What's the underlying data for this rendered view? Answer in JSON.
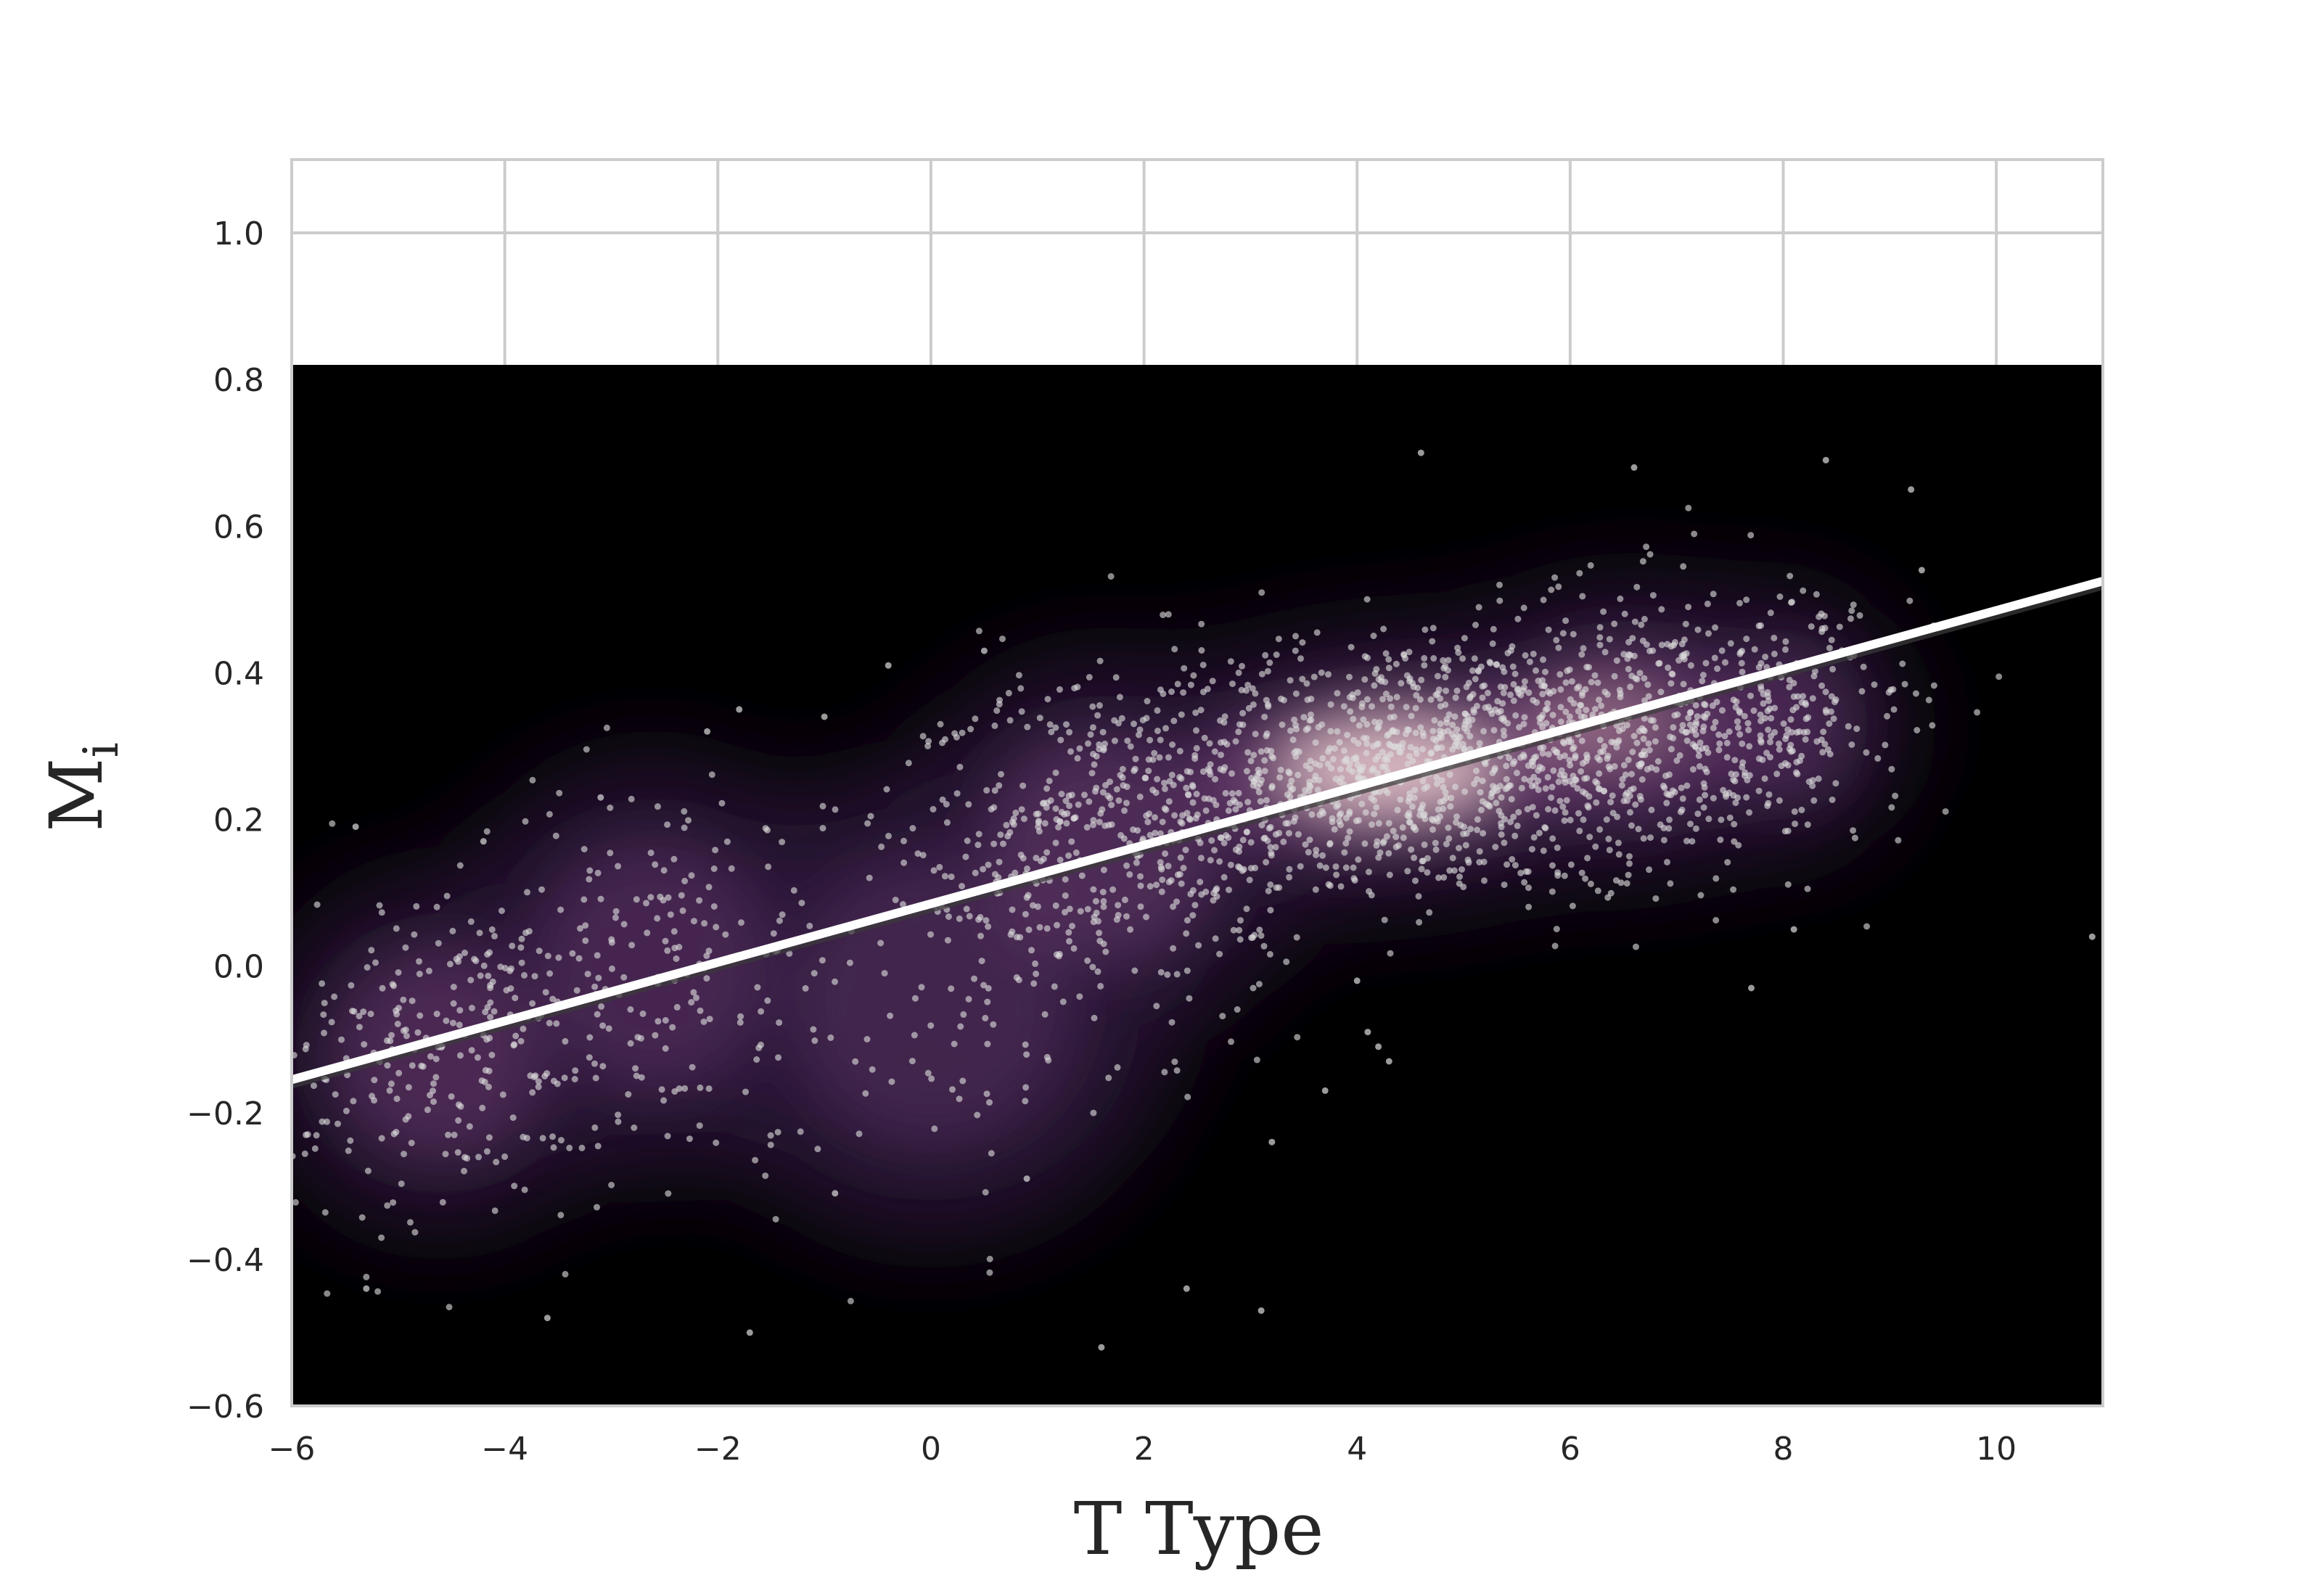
{
  "chart_data": {
    "type": "scatter",
    "title": "",
    "xlabel": "T Type",
    "ylabel_main": "M",
    "ylabel_sub": "i",
    "xlim": [
      -6,
      11
    ],
    "ylim": [
      -0.6,
      1.1
    ],
    "xticks": [
      -6,
      -4,
      -2,
      0,
      2,
      4,
      6,
      8,
      10
    ],
    "xtick_labels": [
      "−6",
      "−4",
      "−2",
      "0",
      "2",
      "4",
      "6",
      "8",
      "10"
    ],
    "yticks": [
      -0.6,
      -0.4,
      -0.2,
      0.0,
      0.2,
      0.4,
      0.6,
      0.8,
      1.0
    ],
    "ytick_labels": [
      "−0.6",
      "−0.4",
      "−0.2",
      "0.0",
      "0.2",
      "0.4",
      "0.6",
      "0.8",
      "1.0"
    ],
    "grid": true,
    "density_overlay": {
      "kind": "kde",
      "ymax": 0.82,
      "background": "#000000",
      "peak_color": "#f2d4d6"
    },
    "fit_line": {
      "x": [
        -6,
        11
      ],
      "y": [
        -0.155,
        0.525
      ],
      "color": "#ffffff"
    },
    "colors": {
      "points": "#dcdcdc",
      "grid": "#cccccc",
      "spine": "#cccccc"
    },
    "clusters": [
      {
        "cx": 4.3,
        "cy": 0.27,
        "sx": 1.7,
        "sy": 0.095,
        "n": 1100,
        "rho": 0.25
      },
      {
        "cx": 6.5,
        "cy": 0.32,
        "sx": 1.1,
        "sy": 0.1,
        "n": 420,
        "rho": 0.1
      },
      {
        "cx": 1.6,
        "cy": 0.16,
        "sx": 1.0,
        "sy": 0.13,
        "n": 320,
        "rho": 0.15
      },
      {
        "cx": -4.6,
        "cy": -0.12,
        "sx": 0.9,
        "sy": 0.12,
        "n": 260,
        "rho": 0.1
      },
      {
        "cx": -2.6,
        "cy": 0.0,
        "sx": 1.0,
        "sy": 0.14,
        "n": 180,
        "rho": 0.1
      },
      {
        "cx": 0.0,
        "cy": -0.05,
        "sx": 1.2,
        "sy": 0.16,
        "n": 80,
        "rho": 0.0
      },
      {
        "cx": 8.0,
        "cy": 0.33,
        "sx": 0.6,
        "sy": 0.09,
        "n": 160,
        "rho": 0.0
      }
    ],
    "outliers": [
      [
        -5.3,
        -0.44
      ],
      [
        -3.6,
        -0.48
      ],
      [
        -1.7,
        -0.5
      ],
      [
        1.6,
        -0.52
      ],
      [
        2.4,
        -0.44
      ],
      [
        3.1,
        -0.47
      ],
      [
        3.2,
        -0.24
      ],
      [
        0.9,
        -0.29
      ],
      [
        -0.9,
        -0.31
      ],
      [
        4.6,
        0.7
      ],
      [
        6.6,
        0.68
      ],
      [
        8.4,
        0.69
      ],
      [
        9.2,
        0.65
      ],
      [
        9.3,
        0.54
      ],
      [
        10.9,
        0.04
      ],
      [
        -1.8,
        0.35
      ],
      [
        -1.0,
        0.34
      ],
      [
        -0.4,
        0.41
      ],
      [
        8.1,
        0.05
      ],
      [
        7.7,
        -0.03
      ],
      [
        4.1,
        -0.09
      ],
      [
        4.2,
        -0.11
      ],
      [
        4.3,
        -0.13
      ],
      [
        3.7,
        -0.17
      ],
      [
        4.0,
        -0.02
      ],
      [
        -5.4,
        0.19
      ],
      [
        -4.2,
        0.17
      ],
      [
        -3.1,
        0.23
      ],
      [
        -2.1,
        0.32
      ],
      [
        0.5,
        0.43
      ]
    ]
  }
}
